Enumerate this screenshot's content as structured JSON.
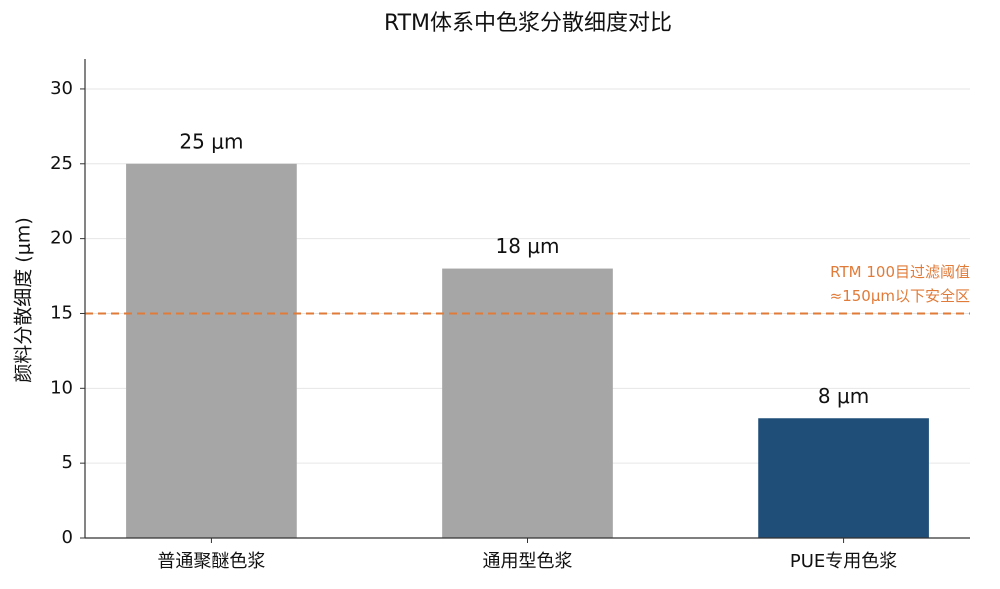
{
  "chart_data": {
    "type": "bar",
    "title": "RTM体系中色浆分散细度对比",
    "y_label": "颜料分散细度 (μm)",
    "categories": [
      "普通聚醚色浆",
      "通用型色浆",
      "PUE专用色浆"
    ],
    "values": [
      25,
      18,
      8
    ],
    "value_labels": [
      "25 μm",
      "18 μm",
      "8 μm"
    ],
    "colors": [
      "#a6a6a6",
      "#a6a6a6",
      "#1f4e79"
    ],
    "ylim": [
      0,
      32
    ],
    "yticks": [
      0,
      5,
      10,
      15,
      20,
      25,
      30
    ],
    "grid": true,
    "reference_line": {
      "value": 15,
      "color": "#e07b39",
      "labels": [
        "RTM 100目过滤阈值",
        "≈150μm以下安全区"
      ]
    }
  }
}
